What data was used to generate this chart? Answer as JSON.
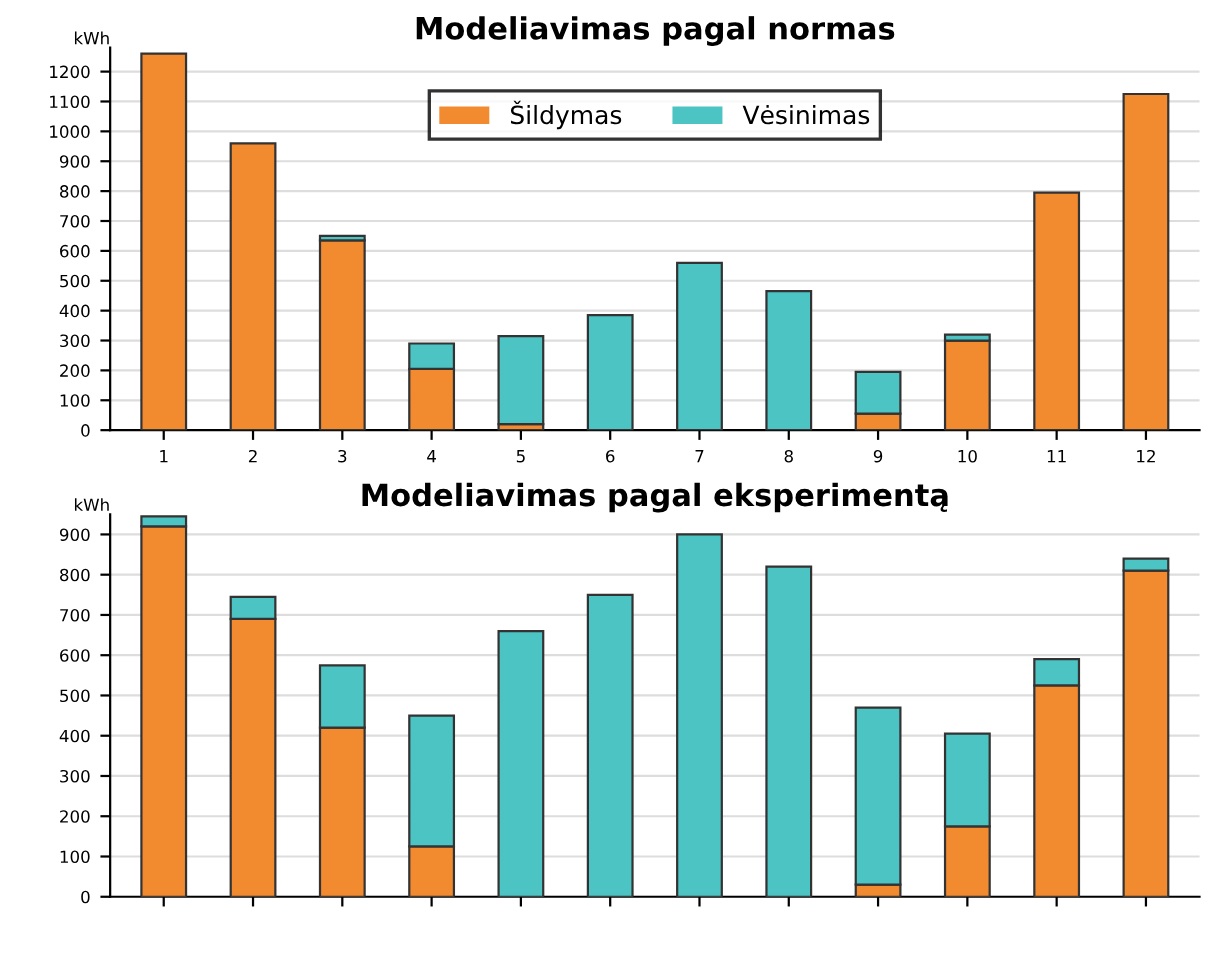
{
  "chart_data": [
    {
      "type": "bar",
      "title": "Modeliavimas pagal normas",
      "ylabel": "kWh",
      "stacked": true,
      "categories": [
        "1",
        "2",
        "3",
        "4",
        "5",
        "6",
        "7",
        "8",
        "9",
        "10",
        "11",
        "12"
      ],
      "series": [
        {
          "name": "Šildymas",
          "color": "#f28a30",
          "values": [
            1260,
            960,
            635,
            205,
            20,
            null,
            0,
            0,
            55,
            300,
            795,
            1125
          ]
        },
        {
          "name": "Vėsinimas",
          "color": "#4dc4c4",
          "values": [
            0,
            0,
            15,
            85,
            295,
            385,
            560,
            465,
            140,
            20,
            0,
            0
          ]
        }
      ],
      "ylim": [
        0,
        1280
      ],
      "yticks": [
        0,
        100,
        200,
        300,
        400,
        500,
        600,
        700,
        800,
        900,
        1000,
        1100,
        1200
      ],
      "grid": "y",
      "legend": "top"
    },
    {
      "type": "bar",
      "title": "Modeliavimas pagal eksperimentą",
      "ylabel": "kWh",
      "stacked": true,
      "categories": [
        null,
        null,
        null,
        null,
        null,
        null,
        null,
        null,
        null,
        null,
        null,
        null
      ],
      "series": [
        {
          "color": "#f28a30",
          "values": [
            920,
            690,
            420,
            125,
            null,
            0,
            0,
            0,
            30,
            175,
            525,
            810
          ]
        },
        {
          "color": "#4dc4c4",
          "values": [
            25,
            55,
            155,
            325,
            660,
            750,
            900,
            820,
            440,
            230,
            65,
            30
          ]
        }
      ],
      "ylim": [
        0,
        950
      ],
      "yticks": [
        0,
        100,
        200,
        300,
        400,
        500,
        600,
        700,
        800,
        900
      ],
      "grid": "y",
      "legend": false
    }
  ]
}
